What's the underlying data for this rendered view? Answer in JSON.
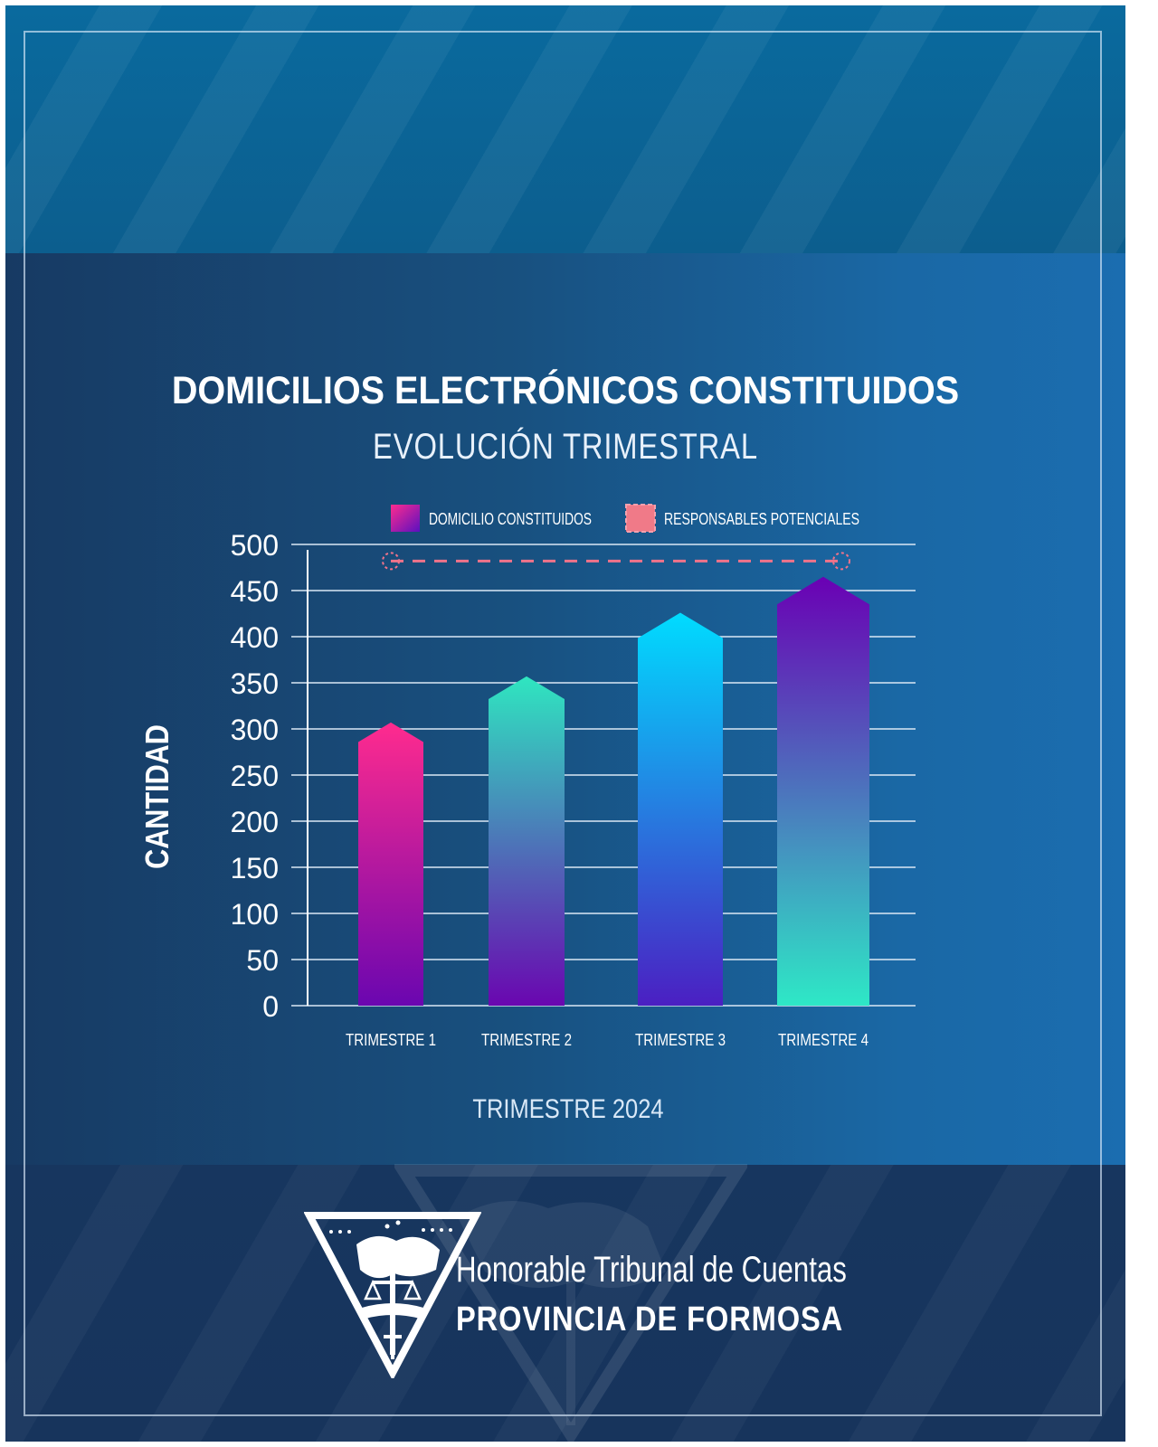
{
  "chart_data": {
    "type": "bar",
    "title": "DOMICILIOS ELECTRÓNICOS CONSTITUIDOS",
    "subtitle": "EVOLUCIÓN TRIMESTRAL",
    "xlabel": "TRIMESTRE 2024",
    "ylabel": "CANTIDAD",
    "ylim": [
      0,
      500
    ],
    "yticks": [
      0,
      50,
      100,
      150,
      200,
      250,
      300,
      350,
      400,
      450,
      500
    ],
    "grid": true,
    "legend_position": "top",
    "categories": [
      "TRIMESTRE 1",
      "TRIMESTRE 2",
      "TRIMESTRE 3",
      "TRIMESTRE 4"
    ],
    "series": [
      {
        "name": "DOMICILIO CONSTITUIDOS",
        "values": [
          307,
          357,
          426,
          465
        ]
      }
    ],
    "reference_line": {
      "name": "RESPONSABLES POTENCIALES",
      "value": 482
    },
    "colors": {
      "bar1": [
        "#ff2b8e",
        "#6a06b0"
      ],
      "bar2": [
        "#2fe6c0",
        "#6a06b0"
      ],
      "bar3": [
        "#00dcff",
        "#4b1fc2"
      ],
      "bar4": [
        "#6a00b4",
        "#2ee8c6"
      ],
      "reference": "#f0738a"
    }
  },
  "organization": {
    "line1": "Honorable Tribunal de Cuentas",
    "line2": "PROVINCIA DE FORMOSA"
  }
}
